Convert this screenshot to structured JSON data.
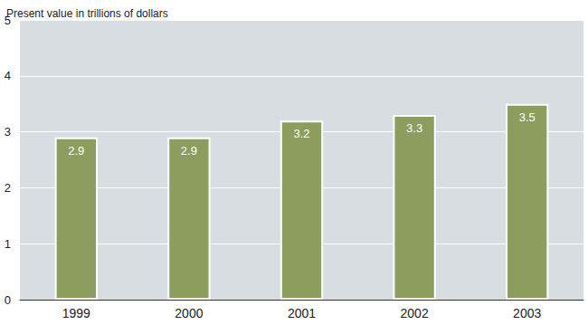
{
  "chart_data": {
    "type": "bar",
    "y_label": "Present value in trillions of dollars",
    "categories": [
      "1999",
      "2000",
      "2001",
      "2002",
      "2003"
    ],
    "values": [
      2.9,
      2.9,
      3.2,
      3.3,
      3.5
    ],
    "color": "#8c9d5e",
    "ylim": [
      0,
      5
    ],
    "yticks": [
      0,
      1,
      2,
      3,
      4,
      5
    ],
    "grid": true,
    "data_labels": true
  }
}
